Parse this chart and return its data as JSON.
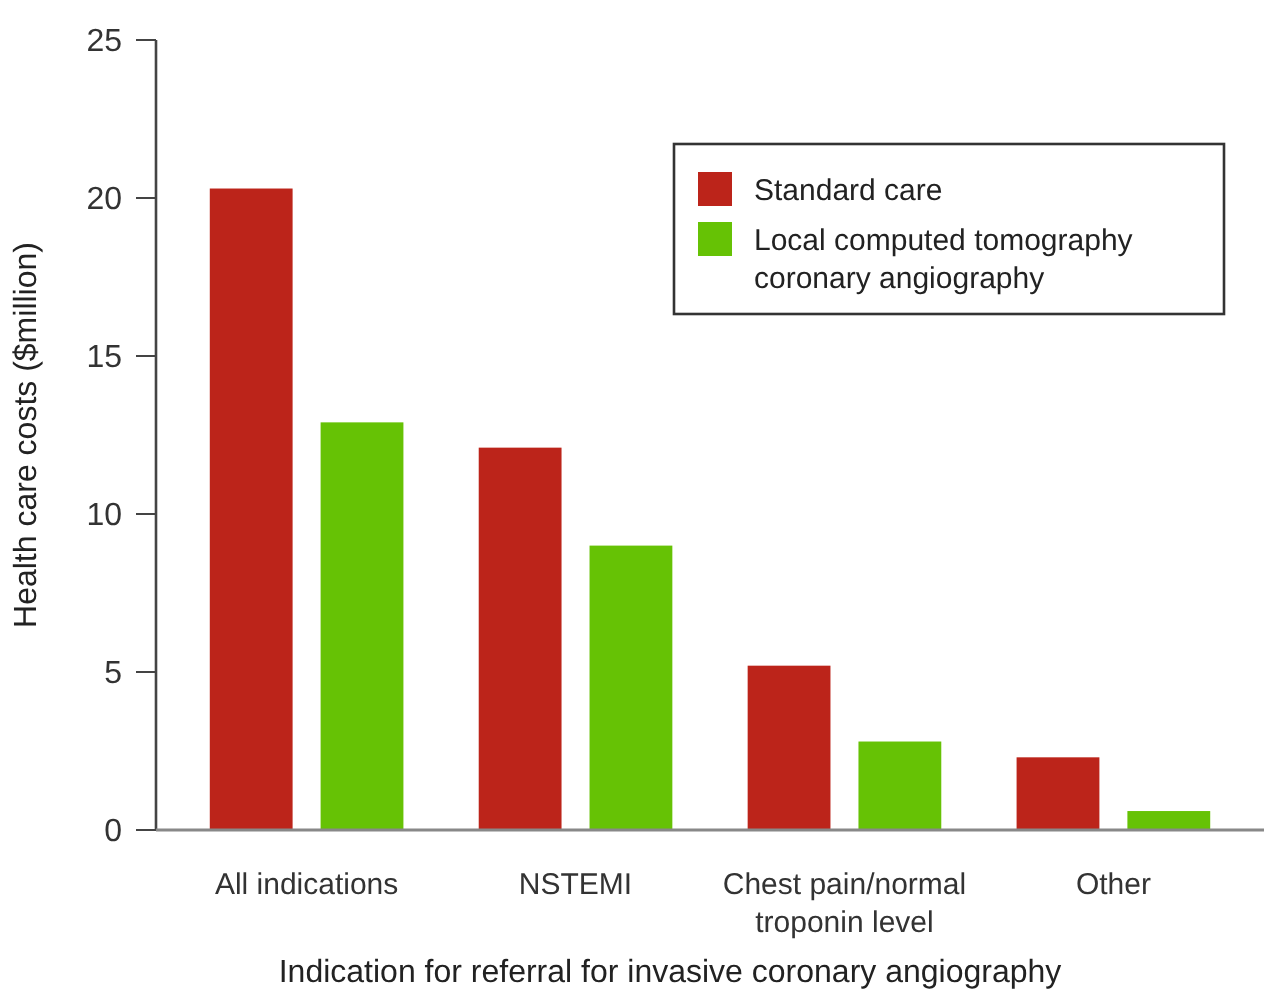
{
  "chart_data": {
    "type": "bar",
    "xlabel": "Indication for referral for invasive coronary angiography",
    "ylabel": "Health care costs ($million)",
    "categories": [
      "All indications",
      "NSTEMI",
      "Chest pain/normal troponin level",
      "Other"
    ],
    "series": [
      {
        "name": "Standard care",
        "color": "#bc241a",
        "values": [
          20.3,
          12.1,
          5.2,
          2.3
        ]
      },
      {
        "name": "Local computed tomography coronary angiography",
        "color": "#66c205",
        "values": [
          12.9,
          9.0,
          2.8,
          0.6
        ]
      }
    ],
    "ylim": [
      0,
      25
    ],
    "yticks": [
      0,
      5,
      10,
      15,
      20,
      25
    ],
    "legend": "top right"
  }
}
